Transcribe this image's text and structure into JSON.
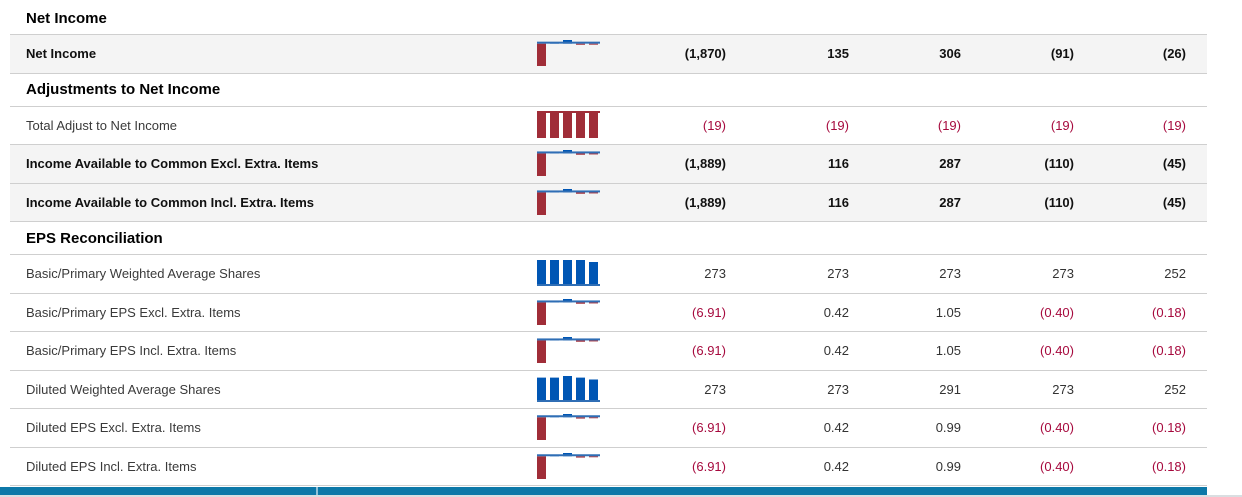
{
  "colors": {
    "negative_text": "#a6093d",
    "positive_text": "#333333",
    "bar_positive_blue": "#0056b4",
    "bar_negative_red": "#a02d38",
    "baseline_blue": "#2f6eb5",
    "baseline_red": "#a02d38",
    "highlight_row_bg": "#f4f4f4",
    "row_border": "#cfcfcf",
    "scrollbar_blue": "#0d78a8",
    "scrollbar_gutter": "#d9dee1"
  },
  "table": {
    "rows": [
      {
        "type": "section",
        "label": "Net Income"
      },
      {
        "type": "data",
        "label": "Net Income",
        "bold": true,
        "highlight": true,
        "values": [
          "(1,870)",
          "135",
          "306",
          "(91)",
          "(26)"
        ],
        "raw": [
          -1870,
          135,
          306,
          -91,
          -26
        ]
      },
      {
        "type": "section",
        "label": "Adjustments to Net Income"
      },
      {
        "type": "data",
        "label": "Total Adjust to Net Income",
        "bold": false,
        "highlight": false,
        "values": [
          "(19)",
          "(19)",
          "(19)",
          "(19)",
          "(19)"
        ],
        "raw": [
          -19,
          -19,
          -19,
          -19,
          -19
        ]
      },
      {
        "type": "data",
        "label": "Income Available to Common Excl. Extra. Items",
        "bold": true,
        "highlight": true,
        "values": [
          "(1,889)",
          "116",
          "287",
          "(110)",
          "(45)"
        ],
        "raw": [
          -1889,
          116,
          287,
          -110,
          -45
        ]
      },
      {
        "type": "data",
        "label": "Income Available to Common Incl. Extra. Items",
        "bold": true,
        "highlight": true,
        "values": [
          "(1,889)",
          "116",
          "287",
          "(110)",
          "(45)"
        ],
        "raw": [
          -1889,
          116,
          287,
          -110,
          -45
        ]
      },
      {
        "type": "section",
        "label": "EPS Reconciliation"
      },
      {
        "type": "data",
        "label": "Basic/Primary Weighted Average Shares",
        "bold": false,
        "highlight": false,
        "values": [
          "273",
          "273",
          "273",
          "273",
          "252"
        ],
        "raw": [
          273,
          273,
          273,
          273,
          252
        ]
      },
      {
        "type": "data",
        "label": "Basic/Primary EPS Excl. Extra. Items",
        "bold": false,
        "highlight": false,
        "values": [
          "(6.91)",
          "0.42",
          "1.05",
          "(0.40)",
          "(0.18)"
        ],
        "raw": [
          -6.91,
          0.42,
          1.05,
          -0.4,
          -0.18
        ]
      },
      {
        "type": "data",
        "label": "Basic/Primary EPS Incl. Extra. Items",
        "bold": false,
        "highlight": false,
        "values": [
          "(6.91)",
          "0.42",
          "1.05",
          "(0.40)",
          "(0.18)"
        ],
        "raw": [
          -6.91,
          0.42,
          1.05,
          -0.4,
          -0.18
        ]
      },
      {
        "type": "data",
        "label": "Diluted Weighted Average Shares",
        "bold": false,
        "highlight": false,
        "values": [
          "273",
          "273",
          "291",
          "273",
          "252"
        ],
        "raw": [
          273,
          273,
          291,
          273,
          252
        ]
      },
      {
        "type": "data",
        "label": "Diluted EPS Excl. Extra. Items",
        "bold": false,
        "highlight": false,
        "values": [
          "(6.91)",
          "0.42",
          "0.99",
          "(0.40)",
          "(0.18)"
        ],
        "raw": [
          -6.91,
          0.42,
          0.99,
          -0.4,
          -0.18
        ]
      },
      {
        "type": "data",
        "label": "Diluted EPS Incl. Extra. Items",
        "bold": false,
        "highlight": false,
        "values": [
          "(6.91)",
          "0.42",
          "0.99",
          "(0.40)",
          "(0.18)"
        ],
        "raw": [
          -6.91,
          0.42,
          0.99,
          -0.4,
          -0.18
        ]
      }
    ]
  }
}
